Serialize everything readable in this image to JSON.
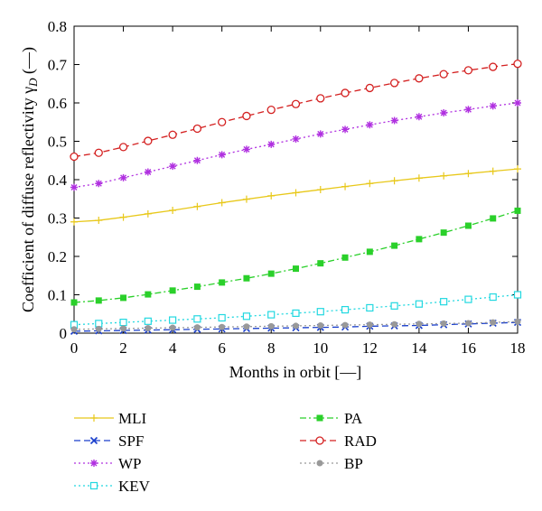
{
  "chart_data": {
    "type": "line",
    "title": "",
    "xlabel": "Months in orbit [—]",
    "ylabel": "Coefficient of diffuse reflectivity γ",
    "ylabel_sub": "D",
    "ylabel_unit": " (—)",
    "xlim": [
      0,
      18
    ],
    "ylim": [
      0,
      0.8
    ],
    "x_ticks": [
      "0",
      "2",
      "4",
      "6",
      "8",
      "10",
      "12",
      "14",
      "16",
      "18"
    ],
    "y_ticks": [
      "0",
      "0.1",
      "0.2",
      "0.3",
      "0.4",
      "0.5",
      "0.6",
      "0.7",
      "0.8"
    ],
    "grid": false,
    "legend_position": "bottom",
    "x": [
      0,
      1,
      2,
      3,
      4,
      5,
      6,
      7,
      8,
      9,
      10,
      11,
      12,
      13,
      14,
      15,
      16,
      17,
      18
    ],
    "series": [
      {
        "name": "MLI",
        "color": "#e8c81a",
        "dash": "solid",
        "marker": "plus",
        "values": [
          0.29,
          0.294,
          0.302,
          0.311,
          0.32,
          0.33,
          0.34,
          0.349,
          0.358,
          0.366,
          0.374,
          0.382,
          0.39,
          0.397,
          0.404,
          0.41,
          0.416,
          0.422,
          0.428
        ]
      },
      {
        "name": "SPF",
        "color": "#1a3fcc",
        "dash": "dashed",
        "marker": "x",
        "values": [
          0.005,
          0.006,
          0.007,
          0.008,
          0.009,
          0.01,
          0.011,
          0.012,
          0.013,
          0.014,
          0.015,
          0.016,
          0.018,
          0.019,
          0.02,
          0.022,
          0.024,
          0.026,
          0.028
        ]
      },
      {
        "name": "WP",
        "color": "#b030e0",
        "dash": "dotted",
        "marker": "star",
        "values": [
          0.38,
          0.39,
          0.405,
          0.42,
          0.435,
          0.45,
          0.465,
          0.479,
          0.492,
          0.506,
          0.519,
          0.531,
          0.543,
          0.554,
          0.564,
          0.574,
          0.583,
          0.592,
          0.6
        ]
      },
      {
        "name": "KEV",
        "color": "#22d8e0",
        "dash": "dotted",
        "marker": "open-square",
        "values": [
          0.022,
          0.025,
          0.028,
          0.031,
          0.034,
          0.037,
          0.04,
          0.044,
          0.048,
          0.052,
          0.056,
          0.061,
          0.066,
          0.071,
          0.076,
          0.082,
          0.088,
          0.094,
          0.1
        ]
      },
      {
        "name": "PA",
        "color": "#2ad02a",
        "dash": "dashdot",
        "marker": "filled-square",
        "values": [
          0.08,
          0.085,
          0.092,
          0.101,
          0.111,
          0.121,
          0.132,
          0.143,
          0.155,
          0.168,
          0.182,
          0.197,
          0.212,
          0.228,
          0.245,
          0.262,
          0.28,
          0.299,
          0.319
        ]
      },
      {
        "name": "RAD",
        "color": "#d42020",
        "dash": "dashed",
        "marker": "open-circle",
        "values": [
          0.46,
          0.47,
          0.485,
          0.501,
          0.517,
          0.533,
          0.55,
          0.566,
          0.582,
          0.597,
          0.612,
          0.626,
          0.639,
          0.652,
          0.664,
          0.675,
          0.685,
          0.694,
          0.702
        ]
      },
      {
        "name": "BP",
        "color": "#999999",
        "dash": "dotted",
        "marker": "filled-circle",
        "values": [
          0.01,
          0.011,
          0.012,
          0.013,
          0.014,
          0.015,
          0.016,
          0.017,
          0.018,
          0.019,
          0.02,
          0.021,
          0.022,
          0.023,
          0.024,
          0.025,
          0.026,
          0.028,
          0.03
        ]
      }
    ]
  }
}
